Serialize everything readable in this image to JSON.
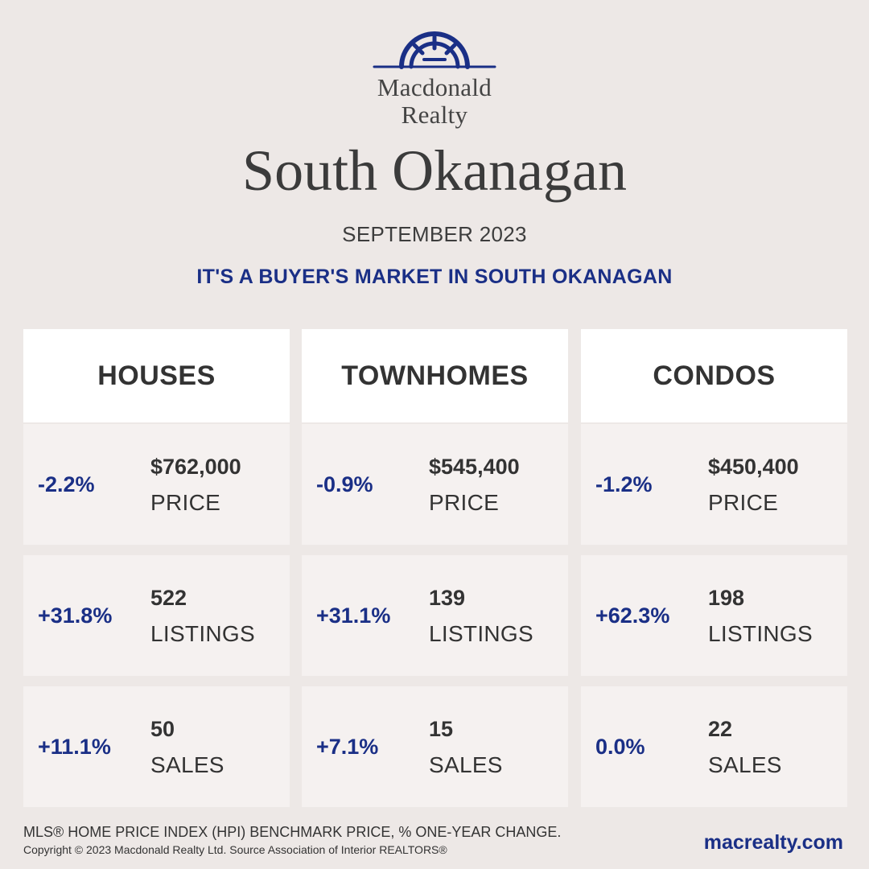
{
  "brand": {
    "line1": "Macdonald",
    "line2": "Realty",
    "logo_icon": "sunburst-arch-logo",
    "color": "#1a2f86"
  },
  "region": "South Okanagan",
  "period": "SEPTEMBER 2023",
  "headline": "IT'S A BUYER'S MARKET IN SOUTH OKANAGAN",
  "categories": [
    {
      "name": "HOUSES",
      "metrics": [
        {
          "change": "-2.2%",
          "value": "$762,000",
          "label": "PRICE"
        },
        {
          "change": "+31.8%",
          "value": "522",
          "label": "LISTINGS"
        },
        {
          "change": "+11.1%",
          "value": "50",
          "label": "SALES"
        }
      ]
    },
    {
      "name": "TOWNHOMES",
      "metrics": [
        {
          "change": "-0.9%",
          "value": "$545,400",
          "label": "PRICE"
        },
        {
          "change": "+31.1%",
          "value": "139",
          "label": "LISTINGS"
        },
        {
          "change": "+7.1%",
          "value": "15",
          "label": "SALES"
        }
      ]
    },
    {
      "name": "CONDOS",
      "metrics": [
        {
          "change": "-1.2%",
          "value": "$450,400",
          "label": "PRICE"
        },
        {
          "change": "+62.3%",
          "value": "198",
          "label": "LISTINGS"
        },
        {
          "change": "0.0%",
          "value": "22",
          "label": "SALES"
        }
      ]
    }
  ],
  "footnote": "MLS® HOME PRICE INDEX (HPI) BENCHMARK PRICE, % ONE-YEAR CHANGE.",
  "copyright": "Copyright © 2023 Macdonald Realty Ltd. Source Association of Interior REALTORS®",
  "website": "macrealty.com",
  "colors": {
    "background": "#ede8e6",
    "accent": "#1a2f86",
    "text": "#333333"
  }
}
